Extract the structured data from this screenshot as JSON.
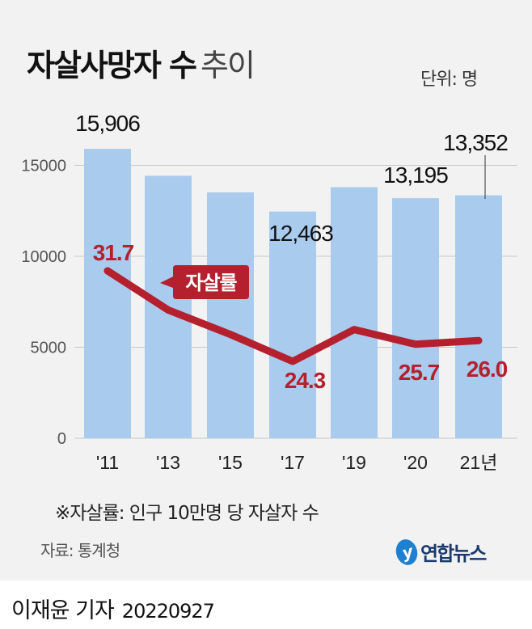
{
  "title_bold": "자살사망자 수",
  "title_light": "추이",
  "unit": "단위: 명",
  "note": "※자살률: 인구 10만명 당 자살자 수",
  "source": "자료: 통계청",
  "logo_text": "연합뉴스",
  "reporter": "이재윤 기자",
  "date": "20220927",
  "colors": {
    "bar": "#a9cbee",
    "line": "#b5202e",
    "background": "#f2f2f2"
  },
  "chart_data": {
    "type": "bar",
    "title": "자살사망자 수 추이",
    "categories": [
      "'11",
      "'13",
      "'15",
      "'17",
      "'19",
      "'20",
      "21년"
    ],
    "series": [
      {
        "name": "자살사망자 수",
        "type": "bar",
        "values": [
          15906,
          14427,
          13513,
          12463,
          13799,
          13195,
          13352
        ],
        "labels": [
          "15,906",
          "",
          "",
          "12,463",
          "",
          "13,195",
          "13,352"
        ]
      },
      {
        "name": "자살률",
        "type": "line",
        "values": [
          31.7,
          28.5,
          26.5,
          24.3,
          26.9,
          25.7,
          26.0
        ],
        "labels": [
          "31.7",
          "",
          "",
          "24.3",
          "",
          "25.7",
          "26.0"
        ]
      }
    ],
    "yticks": [
      0,
      5000,
      10000,
      15000
    ],
    "ytick_labels": [
      "0",
      "5000",
      "10000",
      "15000"
    ],
    "ylim": [
      0,
      16000
    ],
    "line_legend": "자살률"
  }
}
